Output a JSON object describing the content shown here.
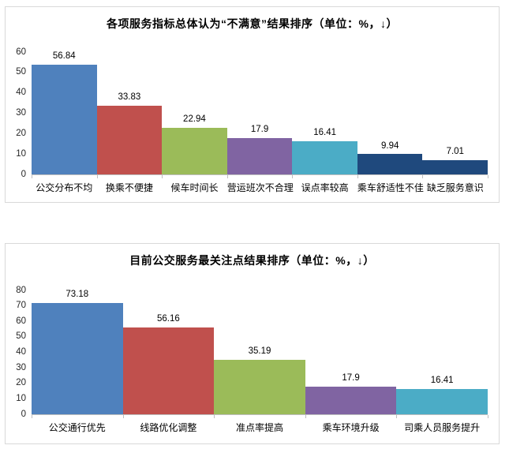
{
  "page": {
    "background": "#ffffff",
    "panel_border": "#d9d9d9"
  },
  "colors": {
    "axis_line": "#bfbfbf",
    "tick_mark": "#bfbfbf",
    "title_text": "#000000",
    "tick_text": "#262626",
    "value_text": "#000000"
  },
  "chart_data": [
    {
      "type": "bar",
      "title": "各项服务指标总体认为“不满意”结果排序（单位：%，↓）",
      "categories": [
        "公交分布不均",
        "换乘不便捷",
        "候车时间长",
        "营运班次不合理",
        "误点率较高",
        "乘车舒适性不佳",
        "缺乏服务意识"
      ],
      "values": [
        56.84,
        33.83,
        22.94,
        17.9,
        16.41,
        9.94,
        7.01
      ],
      "value_labels": [
        "56.84",
        "33.83",
        "22.94",
        "17.9",
        "16.41",
        "9.94",
        "7.01"
      ],
      "bar_colors": [
        "#4F81BD",
        "#C0504D",
        "#9BBB59",
        "#8064A2",
        "#4BACC6",
        "#1F497D",
        "#1F497D"
      ],
      "xlabel": "",
      "ylabel": "",
      "ylim": [
        0,
        60
      ],
      "yticks": [
        0,
        10,
        20,
        30,
        40,
        50,
        60
      ],
      "grid": false,
      "legend": "none",
      "bar_gap": 0,
      "value_label_position": "above"
    },
    {
      "type": "bar",
      "title": "目前公交服务最关注点结果排序（单位：%，↓）",
      "categories": [
        "公交通行优先",
        "线路优化调整",
        "准点率提高",
        "乘车环境升级",
        "司乘人员服务提升"
      ],
      "values": [
        73.18,
        56.16,
        35.19,
        17.9,
        16.41
      ],
      "value_labels": [
        "73.18",
        "56.16",
        "35.19",
        "17.9",
        "16.41"
      ],
      "bar_colors": [
        "#4F81BD",
        "#C0504D",
        "#9BBB59",
        "#8064A2",
        "#4BACC6"
      ],
      "xlabel": "",
      "ylabel": "",
      "ylim": [
        0,
        80
      ],
      "yticks": [
        0,
        10,
        20,
        30,
        40,
        50,
        60,
        70,
        80
      ],
      "grid": false,
      "legend": "none",
      "bar_gap": 0,
      "value_label_position": "above"
    }
  ]
}
